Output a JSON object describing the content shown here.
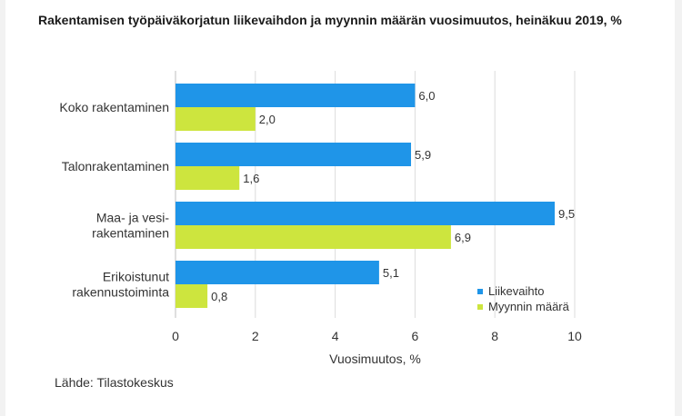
{
  "title": "Rakentamisen työpäiväkorjatun liikevaihdon ja myynnin määrän vuosimuutos, heinäkuu 2019, %",
  "source": "Lähde: Tilastokeskus",
  "colors": {
    "liikevaihto": "#1f95e8",
    "myynnin_maara": "#cde53e",
    "grid": "#dcdcdc"
  },
  "chart_data": {
    "type": "bar",
    "orientation": "horizontal",
    "categories": [
      [
        "Koko rakentaminen"
      ],
      [
        "Talonrakentaminen"
      ],
      [
        "Maa- ja vesi-",
        "rakentaminen"
      ],
      [
        "Erikoistunut",
        "rakennustoiminta"
      ]
    ],
    "series": [
      {
        "name": "Liikevaihto",
        "values": [
          6.0,
          5.9,
          9.5,
          5.1
        ],
        "labels": [
          "6,0",
          "5,9",
          "9,5",
          "5,1"
        ],
        "color": "#1f95e8"
      },
      {
        "name": "Myynnin määrä",
        "values": [
          2.0,
          1.6,
          6.9,
          0.8
        ],
        "labels": [
          "2,0",
          "1,6",
          "6,9",
          "0,8"
        ],
        "color": "#cde53e"
      }
    ],
    "xlabel": "Vuosimuutos, %",
    "xlim": [
      0,
      10
    ],
    "xticks": [
      0,
      2,
      4,
      6,
      8,
      10
    ],
    "xtick_labels": [
      "0",
      "2",
      "4",
      "6",
      "8",
      "10"
    ],
    "grid": true,
    "legend_position": "bottom-right"
  }
}
